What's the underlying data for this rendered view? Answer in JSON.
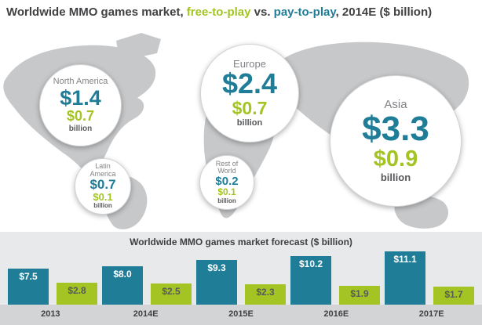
{
  "title": {
    "part1": "Worldwide MMO games market, ",
    "free_label": "free-to-play",
    "part2": " vs. ",
    "pay_label": "pay-to-play",
    "part3": ", 2014E ($ billion)"
  },
  "colors": {
    "pay_to_play_teal": "#1f7d98",
    "free_to_play_green": "#a4c424",
    "title_text": "#414042",
    "map_land": "#c6c8ca",
    "panel_background": "#e8e9ea",
    "year_strip_background": "#d2d4d6"
  },
  "map": {
    "bubbles": [
      {
        "region": "North America",
        "pay": "$1.4",
        "free": "$0.7",
        "unit": "billion"
      },
      {
        "region": "Latin America",
        "pay": "$0.7",
        "free": "$0.1",
        "unit": "billion"
      },
      {
        "region": "Europe",
        "pay": "$2.4",
        "free": "$0.7",
        "unit": "billion"
      },
      {
        "region": "Rest of World",
        "pay": "$0.2",
        "free": "$0.1",
        "unit": "billion"
      },
      {
        "region": "Asia",
        "pay": "$3.3",
        "free": "$0.9",
        "unit": "billion"
      }
    ]
  },
  "chart_data": [
    {
      "type": "scatter",
      "subtype": "bubble-map",
      "title": "Worldwide MMO games market, free-to-play vs. pay-to-play, 2014E ($ billion)",
      "unit": "$ billion",
      "regions": [
        {
          "name": "North America",
          "pay_to_play": 1.4,
          "free_to_play": 0.7
        },
        {
          "name": "Latin America",
          "pay_to_play": 0.7,
          "free_to_play": 0.1
        },
        {
          "name": "Europe",
          "pay_to_play": 2.4,
          "free_to_play": 0.7
        },
        {
          "name": "Rest of World",
          "pay_to_play": 0.2,
          "free_to_play": 0.1
        },
        {
          "name": "Asia",
          "pay_to_play": 3.3,
          "free_to_play": 0.9
        }
      ]
    },
    {
      "type": "bar",
      "title": "Worldwide MMO games market forecast ($ billion)",
      "categories": [
        "2013",
        "2014E",
        "2015E",
        "2016E",
        "2017E"
      ],
      "series": [
        {
          "name": "pay-to-play",
          "color": "#1f7d98",
          "values": [
            7.5,
            8.0,
            9.3,
            10.2,
            11.1
          ],
          "labels": [
            "$7.5",
            "$8.0",
            "$9.3",
            "$10.2",
            "$11.1"
          ]
        },
        {
          "name": "free-to-play",
          "color": "#a4c424",
          "values": [
            2.8,
            2.5,
            2.3,
            1.9,
            1.7
          ],
          "labels": [
            "$2.8",
            "$2.5",
            "$2.3",
            "$1.9",
            "$1.7"
          ]
        }
      ],
      "ylim": [
        0,
        12
      ],
      "grid": false,
      "legend": "none"
    }
  ]
}
